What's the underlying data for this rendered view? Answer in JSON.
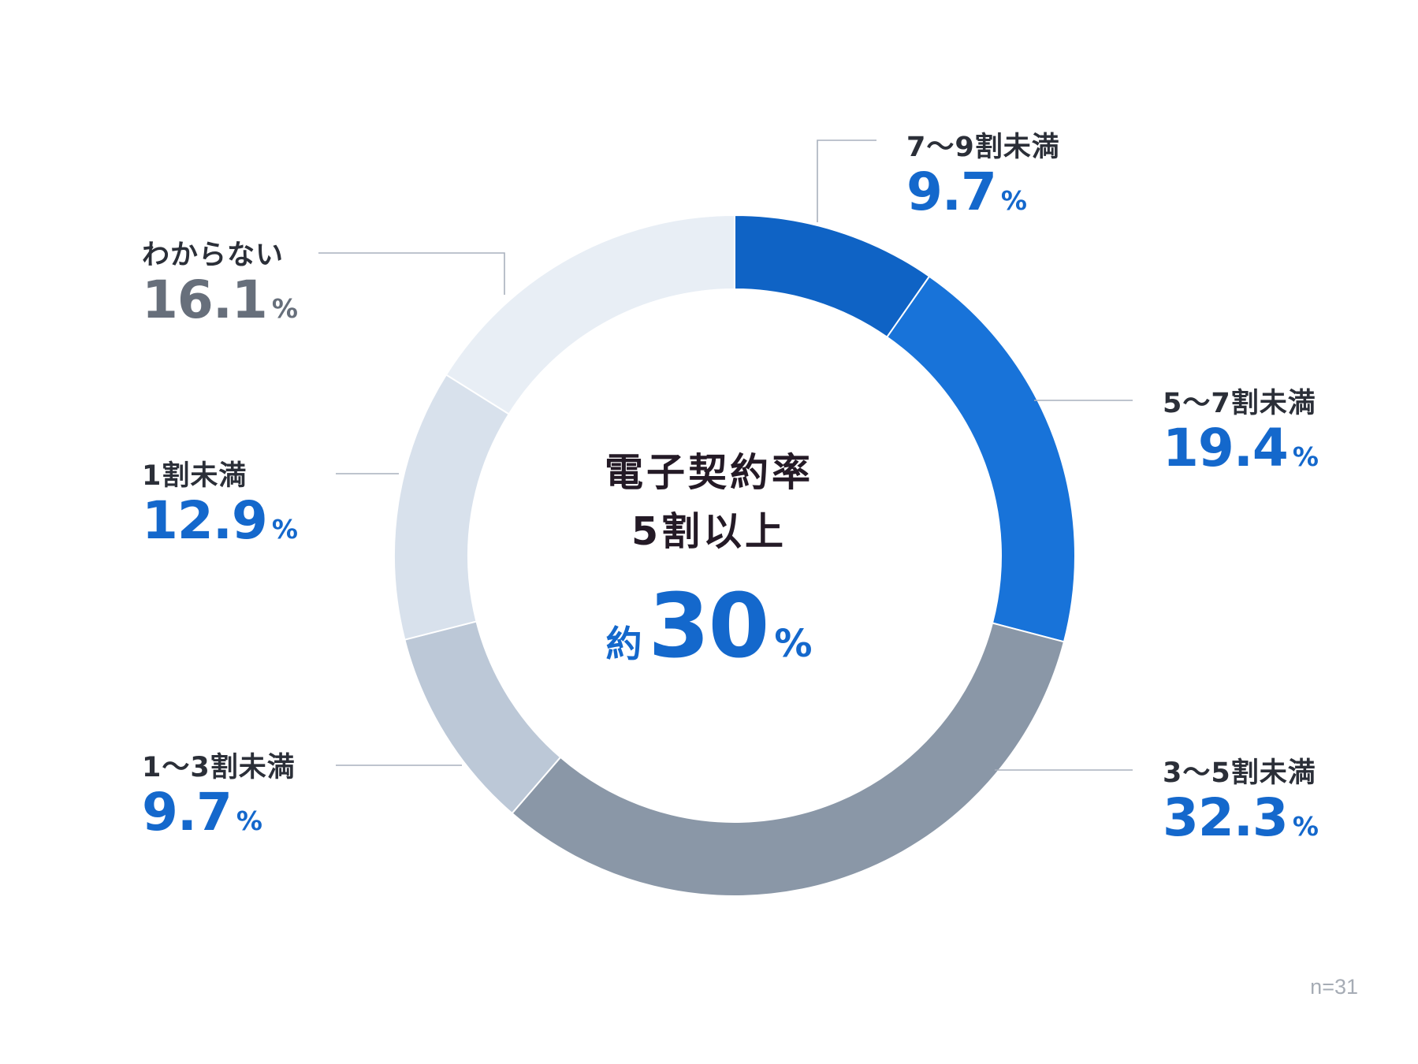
{
  "chart_data": {
    "type": "pie",
    "variant": "donut",
    "slices": [
      {
        "label": "7〜9割未満",
        "value": 9.7,
        "unit": "%",
        "color": "#0f63c5"
      },
      {
        "label": "5〜7割未満",
        "value": 19.4,
        "unit": "%",
        "color": "#1873d9"
      },
      {
        "label": "3〜5割未満",
        "value": 32.3,
        "unit": "%",
        "color": "#8a97a7"
      },
      {
        "label": "1〜3割未満",
        "value": 9.7,
        "unit": "%",
        "color": "#bcc8d7"
      },
      {
        "label": "1割未満",
        "value": 12.9,
        "unit": "%",
        "color": "#d8e1ec"
      },
      {
        "label": "わからない",
        "value": 16.1,
        "unit": "%",
        "color": "#e8eef5"
      }
    ],
    "center": {
      "title_line1": "電子契約率",
      "title_line2": "5割以上",
      "prefix": "約",
      "value": "30",
      "unit": "%"
    },
    "sample_size": "n=31"
  },
  "labels": [
    {
      "key": "s0",
      "category": "7〜9割未満",
      "value_text": "9.7",
      "unit": "%"
    },
    {
      "key": "s1",
      "category": "5〜7割未満",
      "value_text": "19.4",
      "unit": "%"
    },
    {
      "key": "s2",
      "category": "3〜5割未満",
      "value_text": "32.3",
      "unit": "%"
    },
    {
      "key": "s3",
      "category": "1〜3割未満",
      "value_text": "9.7",
      "unit": "%"
    },
    {
      "key": "s4",
      "category": "1割未満",
      "value_text": "12.9",
      "unit": "%"
    },
    {
      "key": "s5",
      "category": "わからない",
      "value_text": "16.1",
      "unit": "%"
    }
  ],
  "colors": {
    "accent": "#1468cc",
    "muted_value": "#676f7b",
    "label_text": "#2b2f38",
    "leader_line": "#a9b1bd"
  }
}
